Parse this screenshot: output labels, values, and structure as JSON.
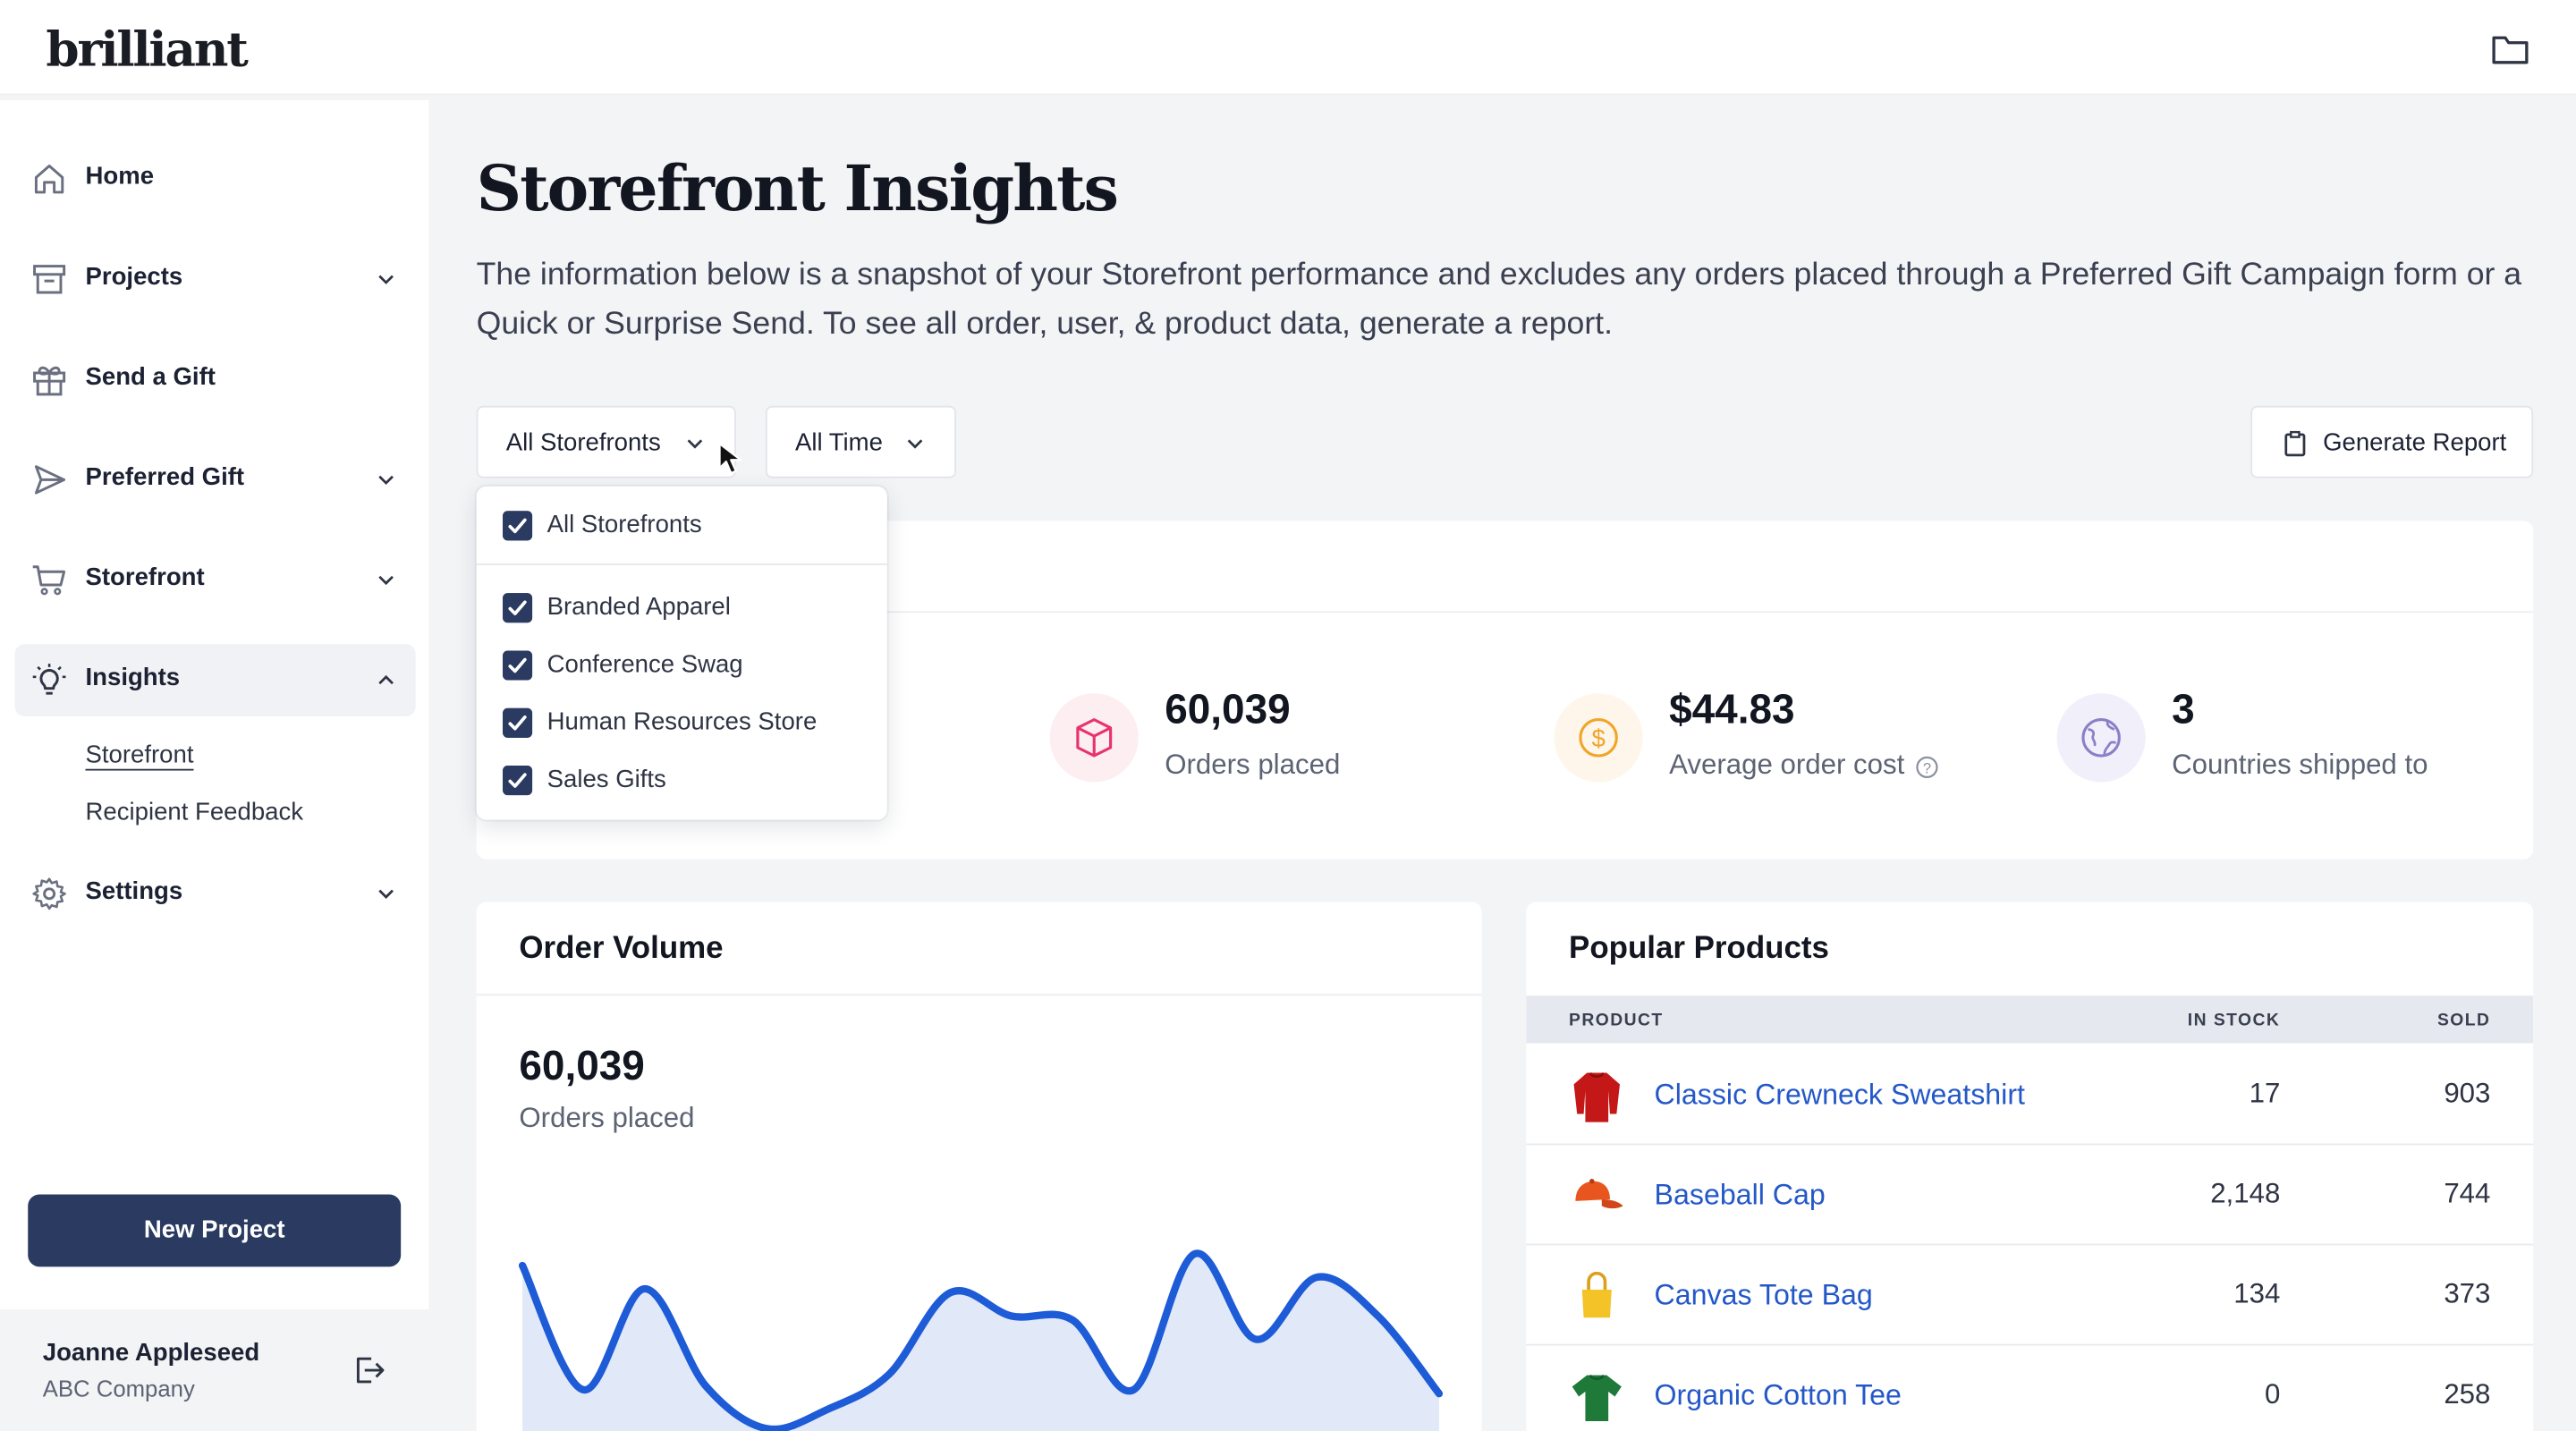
{
  "app": {
    "logo": "brilliant"
  },
  "sidebar": {
    "items": [
      {
        "label": "Home",
        "icon": "home-icon",
        "has_chevron": false
      },
      {
        "label": "Projects",
        "icon": "archive-box-icon",
        "has_chevron": true
      },
      {
        "label": "Send a Gift",
        "icon": "gift-icon",
        "has_chevron": false
      },
      {
        "label": "Preferred Gift",
        "icon": "paper-plane-icon",
        "has_chevron": true
      },
      {
        "label": "Storefront",
        "icon": "cart-icon",
        "has_chevron": true
      },
      {
        "label": "Insights",
        "icon": "lightbulb-icon",
        "has_chevron": true,
        "expanded": true
      },
      {
        "label": "Settings",
        "icon": "gear-icon",
        "has_chevron": true
      }
    ],
    "insights_sub": [
      "Storefront",
      "Recipient Feedback"
    ],
    "new_project_label": "New Project",
    "user": {
      "name": "Joanne Appleseed",
      "company": "ABC Company"
    }
  },
  "main": {
    "title": "Storefront Insights",
    "description": "The information below is a snapshot of your Storefront performance and excludes any orders placed through a Preferred Gift Campaign form or a Quick or Surprise Send. To see all order, user, & product data, generate a report.",
    "filters": {
      "storefront": "All Storefronts",
      "time": "All Time"
    },
    "generate_report_label": "Generate Report",
    "dropdown": {
      "all_label": "All Storefronts",
      "all_checked": true,
      "options": [
        {
          "label": "Branded Apparel",
          "checked": true
        },
        {
          "label": "Conference Swag",
          "checked": true
        },
        {
          "label": "Human Resources Store",
          "checked": true
        },
        {
          "label": "Sales Gifts",
          "checked": true
        }
      ]
    },
    "stats": [
      {
        "value": "60,039",
        "label": "Orders placed",
        "icon": "box-icon",
        "color": "#e8336d",
        "bg": "#fdeef2"
      },
      {
        "value": "$44.83",
        "label": "Average order cost",
        "icon": "dollar-coin-icon",
        "color": "#f0a52b",
        "bg": "#fef6ea",
        "has_help": true
      },
      {
        "value": "3",
        "label": "Countries shipped to",
        "icon": "globe-icon",
        "color": "#8b7fc7",
        "bg": "#f1effa"
      }
    ]
  },
  "order_volume": {
    "title": "Order Volume",
    "value": "60,039",
    "label": "Orders placed",
    "line_color": "#1e5bd6",
    "fill_color": "#e1e9f8"
  },
  "popular_products": {
    "title": "Popular Products",
    "columns": [
      "PRODUCT",
      "IN STOCK",
      "SOLD"
    ],
    "rows": [
      {
        "name": "Classic Crewneck Sweatshirt",
        "in_stock": "17",
        "sold": "903",
        "thumb": "sweatshirt-icon"
      },
      {
        "name": "Baseball Cap",
        "in_stock": "2,148",
        "sold": "744",
        "thumb": "cap-icon"
      },
      {
        "name": "Canvas Tote Bag",
        "in_stock": "134",
        "sold": "373",
        "thumb": "tote-bag-icon"
      },
      {
        "name": "Organic Cotton Tee",
        "in_stock": "0",
        "sold": "258",
        "thumb": "tshirt-icon"
      }
    ]
  },
  "chart_data": {
    "type": "area",
    "title": "Order Volume",
    "xlabel": "",
    "ylabel": "",
    "y": [
      92,
      28,
      80,
      30,
      8,
      18,
      36,
      78,
      66,
      64,
      28,
      98,
      54,
      86,
      66,
      26
    ],
    "ylim": [
      0,
      110
    ],
    "grid": false
  }
}
